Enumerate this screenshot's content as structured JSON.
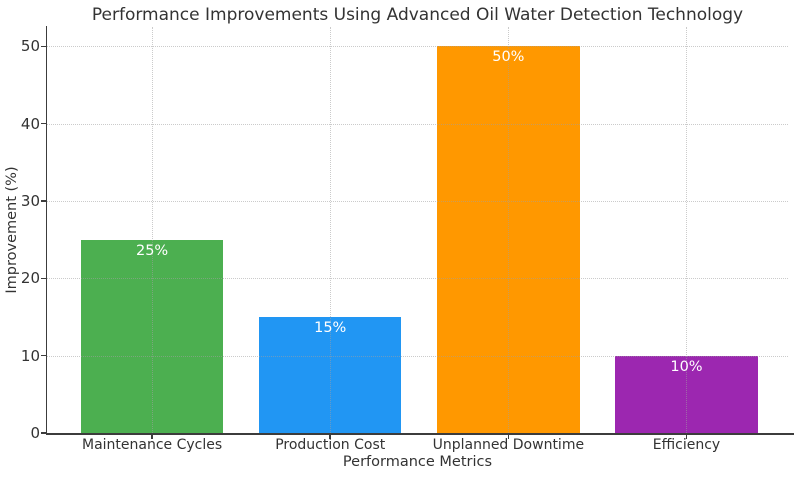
{
  "chart_data": {
    "type": "bar",
    "title": "Performance Improvements Using Advanced Oil Water Detection Technology",
    "xlabel": "Performance Metrics",
    "ylabel": "Improvement (%)",
    "categories": [
      "Maintenance Cycles",
      "Production Cost",
      "Unplanned Downtime",
      "Efficiency"
    ],
    "values": [
      25,
      15,
      50,
      10
    ],
    "bar_labels": [
      "25%",
      "15%",
      "50%",
      "10%"
    ],
    "bar_colors": [
      "#4CAF50",
      "#2196F3",
      "#FF9800",
      "#9C27B0"
    ],
    "ylim": [
      0,
      52.5
    ],
    "yticks": [
      0,
      10,
      20,
      30,
      40,
      50
    ],
    "legend": "none",
    "grid": "dotted, horizontal and vertical at category centers, drawn above bars",
    "grid_color": "#a0a0a0",
    "axis_color": "#3c3c3c",
    "text_color": "#333333",
    "bar_label_color": "#ffffff",
    "background": "#ffffff"
  }
}
